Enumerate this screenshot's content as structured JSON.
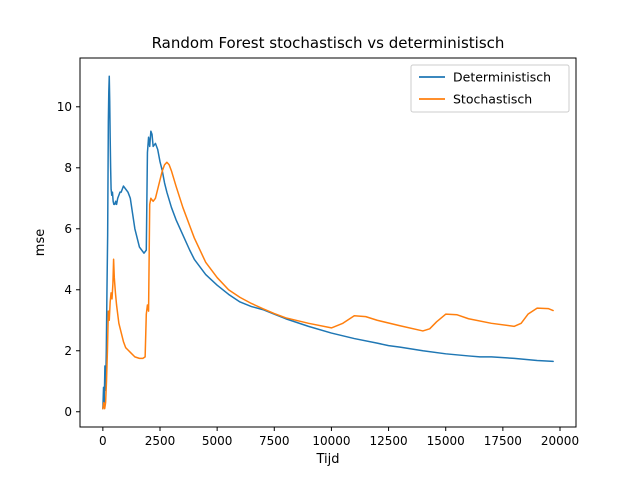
{
  "chart_data": {
    "type": "line",
    "title": "Random Forest stochastisch vs deterministisch",
    "xlabel": "Tijd",
    "ylabel": "mse",
    "xlim": [
      -1000,
      20700
    ],
    "ylim": [
      -0.5,
      11.6
    ],
    "xticks": [
      0,
      2500,
      5000,
      7500,
      10000,
      12500,
      15000,
      17500,
      20000
    ],
    "yticks": [
      0,
      2,
      4,
      6,
      8,
      10
    ],
    "grid": false,
    "legend_position": "top-right",
    "series": [
      {
        "name": "Deterministisch",
        "color": "#1f77b4",
        "x": [
          0,
          30,
          60,
          90,
          120,
          150,
          180,
          210,
          240,
          260,
          280,
          300,
          320,
          340,
          360,
          390,
          420,
          450,
          480,
          520,
          560,
          600,
          650,
          700,
          750,
          800,
          850,
          900,
          1000,
          1100,
          1200,
          1300,
          1400,
          1500,
          1600,
          1700,
          1800,
          1900,
          1950,
          2000,
          2050,
          2100,
          2150,
          2200,
          2300,
          2400,
          2500,
          2600,
          2700,
          2800,
          3000,
          3200,
          3500,
          3800,
          4000,
          4500,
          5000,
          5500,
          6000,
          6500,
          7000,
          7500,
          8000,
          9000,
          10000,
          11000,
          12000,
          12500,
          13000,
          14000,
          15000,
          16000,
          16500,
          17000,
          18000,
          19000,
          19700
        ],
        "y": [
          0.1,
          0.8,
          0.3,
          1.5,
          0.7,
          2.0,
          4.0,
          5.8,
          9.5,
          10.5,
          11.0,
          10.2,
          9.0,
          8.0,
          7.3,
          7.1,
          7.2,
          6.9,
          6.8,
          6.8,
          6.9,
          6.8,
          7.0,
          7.1,
          7.2,
          7.2,
          7.3,
          7.4,
          7.3,
          7.2,
          7.0,
          6.5,
          6.0,
          5.7,
          5.4,
          5.3,
          5.2,
          5.3,
          8.5,
          9.0,
          8.7,
          9.2,
          9.1,
          8.7,
          8.8,
          8.6,
          8.2,
          7.9,
          7.5,
          7.2,
          6.7,
          6.3,
          5.8,
          5.3,
          5.0,
          4.5,
          4.15,
          3.85,
          3.6,
          3.45,
          3.35,
          3.2,
          3.05,
          2.8,
          2.58,
          2.4,
          2.25,
          2.17,
          2.12,
          2.0,
          1.9,
          1.83,
          1.8,
          1.8,
          1.75,
          1.68,
          1.65
        ]
      },
      {
        "name": "Stochastisch",
        "color": "#ff7f0e",
        "x": [
          0,
          40,
          80,
          120,
          160,
          200,
          240,
          280,
          320,
          360,
          400,
          440,
          470,
          500,
          550,
          600,
          650,
          700,
          800,
          900,
          1000,
          1200,
          1400,
          1600,
          1750,
          1850,
          1900,
          1950,
          2000,
          2050,
          2100,
          2200,
          2300,
          2400,
          2500,
          2600,
          2700,
          2800,
          2900,
          3000,
          3200,
          3500,
          3800,
          4000,
          4500,
          5000,
          5500,
          6000,
          6500,
          7000,
          7500,
          8000,
          9000,
          10000,
          10500,
          11000,
          11500,
          12000,
          13000,
          14000,
          14300,
          14600,
          15000,
          15500,
          16000,
          17000,
          18000,
          18300,
          18600,
          19000,
          19500,
          19700
        ],
        "y": [
          0.1,
          0.3,
          0.1,
          0.3,
          1.0,
          2.0,
          3.3,
          3.0,
          3.6,
          3.9,
          3.7,
          4.2,
          5.0,
          4.4,
          3.9,
          3.5,
          3.2,
          2.9,
          2.6,
          2.3,
          2.1,
          1.95,
          1.8,
          1.75,
          1.75,
          1.8,
          3.2,
          3.5,
          3.3,
          6.8,
          7.0,
          6.9,
          7.0,
          7.3,
          7.6,
          7.9,
          8.1,
          8.18,
          8.1,
          7.9,
          7.4,
          6.7,
          6.1,
          5.7,
          4.9,
          4.4,
          4.0,
          3.75,
          3.55,
          3.38,
          3.22,
          3.08,
          2.9,
          2.75,
          2.9,
          3.15,
          3.12,
          3.0,
          2.82,
          2.65,
          2.72,
          2.95,
          3.2,
          3.18,
          3.05,
          2.9,
          2.8,
          2.9,
          3.2,
          3.4,
          3.38,
          3.32
        ]
      }
    ]
  }
}
